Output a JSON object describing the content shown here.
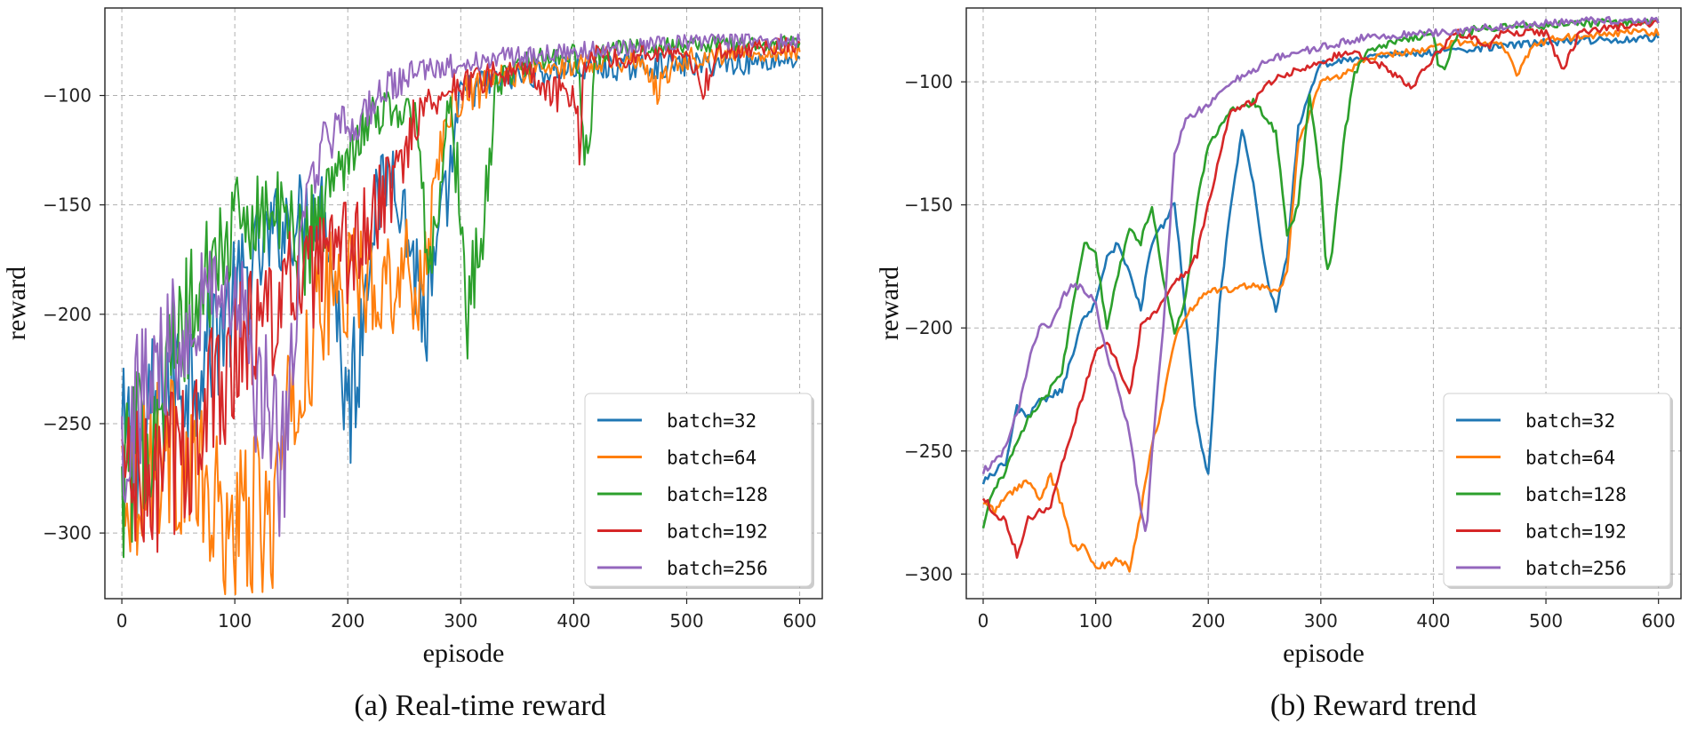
{
  "chart_data": [
    {
      "type": "line",
      "panel": "a",
      "caption": "(a) Real-time reward",
      "xlabel": "episode",
      "ylabel": "reward",
      "xlim": [
        -15,
        620
      ],
      "ylim": [
        -330,
        -60
      ],
      "xticks": [
        0,
        100,
        200,
        300,
        400,
        500,
        600
      ],
      "yticks": [
        -300,
        -250,
        -200,
        -150,
        -100
      ],
      "legend_position": "lower-right",
      "noise": 1,
      "series": [
        {
          "name": "batch=32",
          "color": "#1f77b4",
          "x": [
            0,
            20,
            40,
            60,
            80,
            100,
            120,
            140,
            160,
            180,
            190,
            200,
            210,
            220,
            240,
            260,
            270,
            280,
            300,
            320,
            340,
            360,
            400,
            450,
            500,
            550,
            600
          ],
          "y": [
            -262,
            -255,
            -232,
            -226,
            -210,
            -195,
            -175,
            -160,
            -155,
            -150,
            -195,
            -245,
            -215,
            -160,
            -130,
            -180,
            -205,
            -175,
            -100,
            -95,
            -93,
            -90,
            -88,
            -87,
            -86,
            -85,
            -83
          ]
        },
        {
          "name": "batch=64",
          "color": "#ff7f0e",
          "x": [
            0,
            10,
            20,
            40,
            60,
            80,
            100,
            120,
            130,
            140,
            150,
            160,
            170,
            180,
            190,
            200,
            220,
            240,
            260,
            270,
            280,
            300,
            320,
            340,
            380,
            420,
            460,
            475,
            490,
            520,
            560,
            600
          ],
          "y": [
            -270,
            -275,
            -268,
            -262,
            -270,
            -292,
            -300,
            -290,
            -300,
            -270,
            -250,
            -228,
            -205,
            -193,
            -188,
            -185,
            -184,
            -182,
            -185,
            -175,
            -125,
            -100,
            -97,
            -90,
            -88,
            -84,
            -84,
            -97,
            -84,
            -82,
            -80,
            -80
          ]
        },
        {
          "name": "batch=128",
          "color": "#2ca02c",
          "x": [
            0,
            20,
            40,
            60,
            80,
            100,
            120,
            140,
            160,
            180,
            200,
            220,
            240,
            260,
            270,
            280,
            290,
            300,
            305,
            310,
            320,
            330,
            340,
            360,
            400,
            405,
            410,
            420,
            440,
            460,
            500,
            550,
            600
          ],
          "y": [
            -280,
            -255,
            -228,
            -200,
            -180,
            -160,
            -152,
            -155,
            -170,
            -150,
            -125,
            -110,
            -105,
            -110,
            -170,
            -150,
            -105,
            -150,
            -200,
            -185,
            -165,
            -100,
            -90,
            -85,
            -80,
            -95,
            -138,
            -82,
            -78,
            -78,
            -77,
            -76,
            -76
          ]
        },
        {
          "name": "batch=192",
          "color": "#d62728",
          "x": [
            0,
            20,
            40,
            60,
            80,
            100,
            120,
            140,
            160,
            180,
            200,
            220,
            240,
            260,
            280,
            300,
            320,
            340,
            360,
            380,
            400,
            405,
            410,
            420,
            450,
            460,
            500,
            515,
            530,
            560,
            600
          ],
          "y": [
            -268,
            -285,
            -270,
            -260,
            -240,
            -215,
            -205,
            -195,
            -185,
            -180,
            -172,
            -160,
            -140,
            -110,
            -100,
            -95,
            -92,
            -90,
            -90,
            -100,
            -98,
            -120,
            -85,
            -80,
            -85,
            -80,
            -80,
            -95,
            -80,
            -78,
            -76
          ]
        },
        {
          "name": "batch=256",
          "color": "#9467bd",
          "x": [
            0,
            20,
            40,
            60,
            80,
            100,
            110,
            120,
            130,
            140,
            150,
            160,
            180,
            200,
            220,
            240,
            260,
            280,
            300,
            340,
            400,
            450,
            500,
            550,
            600
          ],
          "y": [
            -258,
            -235,
            -215,
            -198,
            -185,
            -190,
            -215,
            -245,
            -232,
            -280,
            -220,
            -165,
            -120,
            -115,
            -105,
            -95,
            -90,
            -88,
            -86,
            -82,
            -80,
            -78,
            -76,
            -75,
            -75
          ]
        }
      ]
    },
    {
      "type": "line",
      "panel": "b",
      "caption": "(b) Reward trend",
      "xlabel": "episode",
      "ylabel": "reward",
      "xlim": [
        -15,
        620
      ],
      "ylim": [
        -310,
        -70
      ],
      "xticks": [
        0,
        100,
        200,
        300,
        400,
        500,
        600
      ],
      "yticks": [
        -300,
        -250,
        -200,
        -150,
        -100
      ],
      "legend_position": "lower-right",
      "noise": 0,
      "series": [
        {
          "name": "batch=32",
          "color": "#1f77b4",
          "x": [
            0,
            20,
            30,
            40,
            50,
            60,
            70,
            80,
            90,
            100,
            110,
            120,
            130,
            140,
            150,
            160,
            170,
            180,
            190,
            200,
            210,
            220,
            230,
            240,
            250,
            260,
            270,
            280,
            300,
            340,
            400,
            450,
            500,
            550,
            600
          ],
          "y": [
            -262,
            -255,
            -232,
            -236,
            -230,
            -228,
            -225,
            -210,
            -195,
            -190,
            -172,
            -165,
            -178,
            -192,
            -165,
            -158,
            -148,
            -195,
            -240,
            -260,
            -190,
            -150,
            -120,
            -140,
            -175,
            -193,
            -170,
            -118,
            -93,
            -90,
            -88,
            -86,
            -84,
            -83,
            -82
          ]
        },
        {
          "name": "batch=64",
          "color": "#ff7f0e",
          "x": [
            0,
            10,
            20,
            40,
            50,
            60,
            70,
            80,
            90,
            100,
            110,
            120,
            130,
            140,
            150,
            160,
            170,
            180,
            190,
            200,
            220,
            240,
            260,
            270,
            280,
            300,
            320,
            340,
            380,
            420,
            460,
            475,
            490,
            520,
            560,
            600
          ],
          "y": [
            -270,
            -275,
            -268,
            -262,
            -270,
            -260,
            -272,
            -290,
            -288,
            -298,
            -296,
            -294,
            -298,
            -275,
            -248,
            -230,
            -205,
            -195,
            -190,
            -185,
            -184,
            -182,
            -186,
            -178,
            -125,
            -100,
            -97,
            -90,
            -88,
            -84,
            -84,
            -97,
            -84,
            -82,
            -80,
            -80
          ]
        },
        {
          "name": "batch=128",
          "color": "#2ca02c",
          "x": [
            0,
            10,
            20,
            40,
            60,
            70,
            80,
            90,
            100,
            110,
            120,
            130,
            140,
            150,
            160,
            170,
            180,
            190,
            200,
            220,
            240,
            260,
            270,
            280,
            290,
            300,
            305,
            310,
            320,
            330,
            340,
            360,
            400,
            405,
            410,
            420,
            440,
            460,
            500,
            550,
            600
          ],
          "y": [
            -280,
            -265,
            -258,
            -236,
            -225,
            -218,
            -190,
            -165,
            -170,
            -200,
            -178,
            -160,
            -165,
            -150,
            -180,
            -202,
            -188,
            -150,
            -125,
            -112,
            -108,
            -120,
            -163,
            -150,
            -105,
            -140,
            -178,
            -170,
            -125,
            -97,
            -88,
            -85,
            -80,
            -95,
            -95,
            -82,
            -78,
            -78,
            -77,
            -76,
            -76
          ]
        },
        {
          "name": "batch=192",
          "color": "#d62728",
          "x": [
            0,
            10,
            20,
            30,
            40,
            60,
            80,
            90,
            100,
            110,
            120,
            130,
            140,
            150,
            160,
            170,
            180,
            190,
            200,
            220,
            240,
            260,
            280,
            300,
            320,
            340,
            360,
            380,
            400,
            410,
            420,
            450,
            460,
            500,
            515,
            530,
            560,
            600
          ],
          "y": [
            -268,
            -276,
            -278,
            -292,
            -278,
            -272,
            -240,
            -225,
            -210,
            -205,
            -215,
            -228,
            -200,
            -195,
            -190,
            -182,
            -178,
            -170,
            -150,
            -112,
            -108,
            -98,
            -95,
            -92,
            -88,
            -90,
            -95,
            -103,
            -90,
            -85,
            -80,
            -85,
            -80,
            -80,
            -95,
            -80,
            -78,
            -76
          ]
        },
        {
          "name": "batch=256",
          "color": "#9467bd",
          "x": [
            0,
            10,
            20,
            30,
            40,
            50,
            60,
            70,
            80,
            90,
            100,
            110,
            120,
            130,
            140,
            145,
            150,
            160,
            170,
            180,
            190,
            200,
            220,
            240,
            260,
            280,
            300,
            340,
            400,
            450,
            500,
            550,
            600
          ],
          "y": [
            -258,
            -255,
            -248,
            -235,
            -215,
            -200,
            -199,
            -188,
            -182,
            -185,
            -190,
            -212,
            -225,
            -243,
            -275,
            -285,
            -250,
            -200,
            -130,
            -115,
            -112,
            -110,
            -100,
            -95,
            -90,
            -88,
            -86,
            -82,
            -80,
            -78,
            -76,
            -75,
            -75
          ]
        }
      ]
    }
  ]
}
